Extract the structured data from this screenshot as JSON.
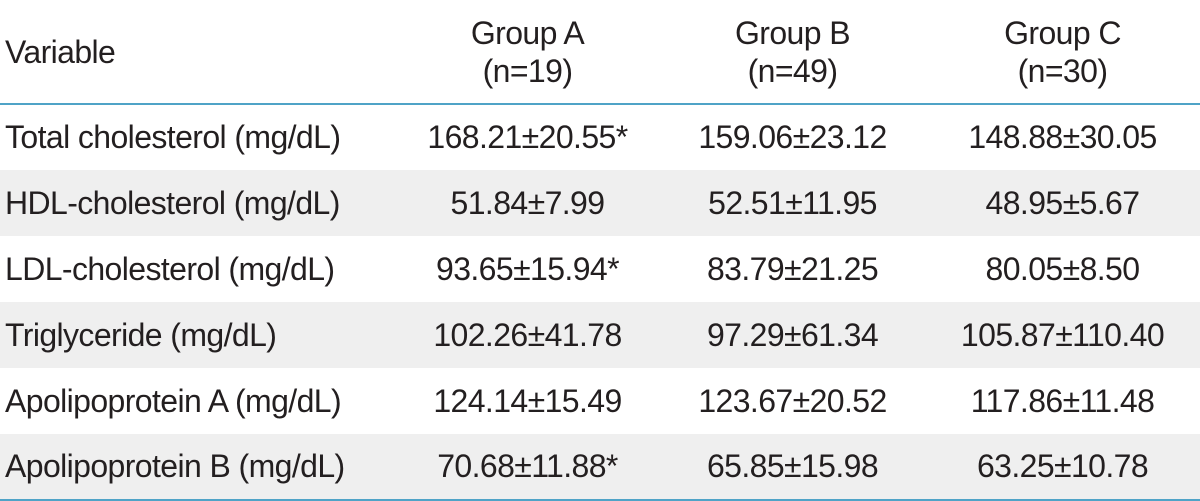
{
  "table": {
    "header": {
      "variable": "Variable",
      "groups": [
        {
          "name": "Group A",
          "n": "(n=19)"
        },
        {
          "name": "Group B",
          "n": "(n=49)"
        },
        {
          "name": "Group C",
          "n": "(n=30)"
        }
      ]
    },
    "rows": [
      [
        "Total cholesterol (mg/dL)",
        "168.21±20.55*",
        "159.06±23.12",
        "148.88±30.05"
      ],
      [
        "HDL-cholesterol (mg/dL)",
        "51.84±7.99",
        "52.51±11.95",
        "48.95±5.67"
      ],
      [
        "LDL-cholesterol (mg/dL)",
        "93.65±15.94*",
        "83.79±21.25",
        "80.05±8.50"
      ],
      [
        "Triglyceride (mg/dL)",
        "102.26±41.78",
        "97.29±61.34",
        "105.87±110.40"
      ],
      [
        "Apolipoprotein A (mg/dL)",
        "124.14±15.49",
        "123.67±20.52",
        "117.86±11.48"
      ],
      [
        "Apolipoprotein B (mg/dL)",
        "70.68±11.88*",
        "65.85±15.98",
        "63.25±10.78"
      ]
    ]
  }
}
